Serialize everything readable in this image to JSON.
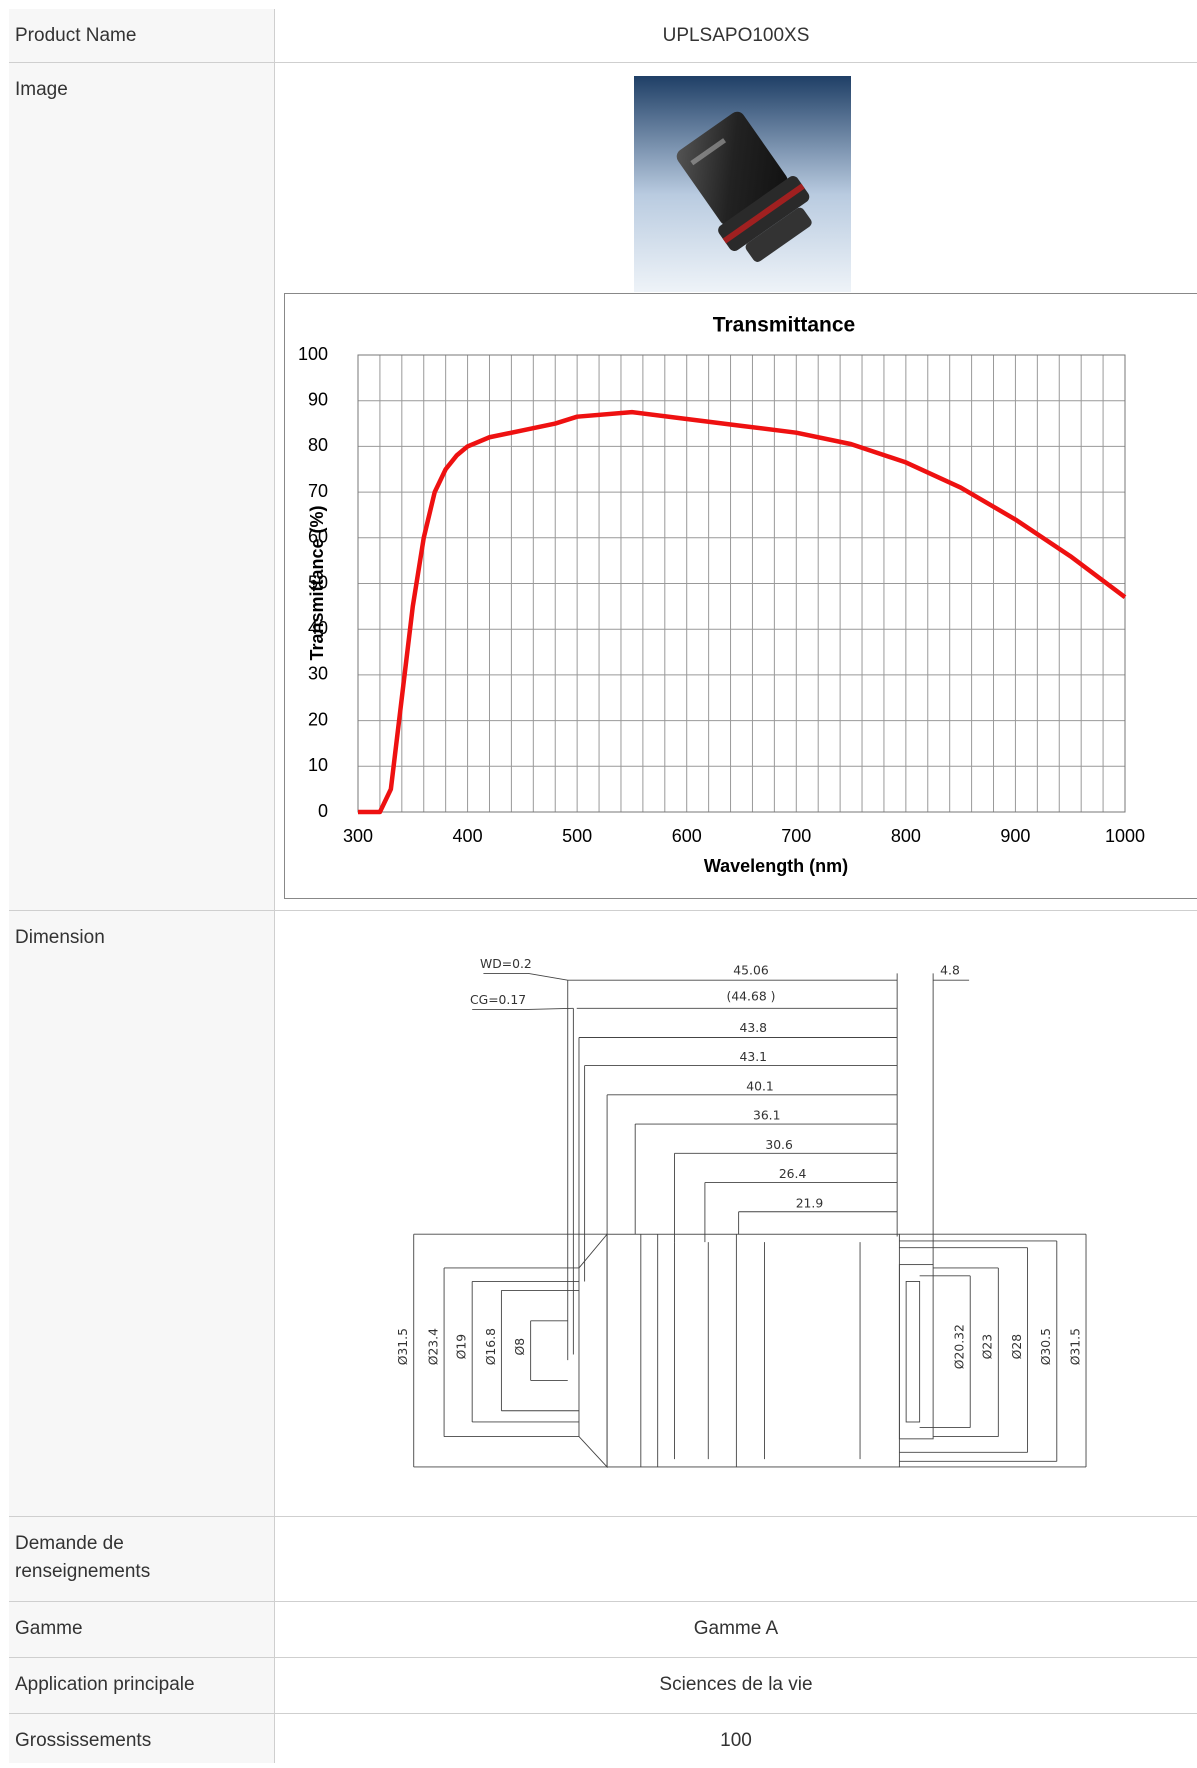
{
  "table": {
    "rows": [
      {
        "label": "Product Name",
        "value": "UPLSAPO100XS"
      },
      {
        "label": "Image"
      },
      {
        "label": "Dimension"
      },
      {
        "label": "Demande de renseignements"
      },
      {
        "label": "Gamme",
        "value": "Gamme A"
      },
      {
        "label": "Application principale",
        "value": "Sciences de la vie"
      },
      {
        "label": "Grossissements",
        "value": "100"
      }
    ]
  },
  "chart_data": {
    "type": "line",
    "title": "Transmittance",
    "x_label": "Wavelength (nm)",
    "y_label": "Transmittance (%)",
    "x": [
      300,
      310,
      320,
      330,
      340,
      350,
      360,
      370,
      380,
      390,
      400,
      420,
      450,
      480,
      500,
      550,
      600,
      650,
      700,
      750,
      800,
      850,
      900,
      950,
      1000
    ],
    "series": [
      {
        "color": "#ee1111",
        "values": [
          0,
          0,
          0,
          5,
          25,
          45,
          60,
          70,
          75,
          78,
          80,
          82,
          83.5,
          85,
          86.5,
          87.5,
          86,
          84.5,
          83,
          80.5,
          76.5,
          71,
          64,
          56,
          47
        ]
      }
    ],
    "xlim": [
      300,
      1000
    ],
    "ylim": [
      0,
      100
    ],
    "xticks": [
      300,
      400,
      500,
      600,
      700,
      800,
      900,
      1000
    ],
    "yticks": [
      0,
      10,
      20,
      30,
      40,
      50,
      60,
      70,
      80,
      90,
      100
    ],
    "xgrid": [
      300,
      320,
      340,
      360,
      380,
      400,
      420,
      440,
      460,
      480,
      500,
      520,
      540,
      560,
      580,
      600,
      620,
      640,
      660,
      680,
      700,
      720,
      740,
      760,
      780,
      800,
      820,
      840,
      860,
      880,
      900,
      920,
      940,
      960,
      980,
      1000
    ],
    "grid": true
  },
  "dimension": {
    "labels": [
      "WD=0.2",
      "CG=0.17",
      "45.06",
      "(44.68 )",
      "4.8",
      "43.8",
      "43.1",
      "40.1",
      "36.1",
      "30.6",
      "26.4",
      "21.9",
      "Ø31.5",
      "Ø23.4",
      "Ø19",
      "Ø16.8",
      "Ø8",
      "Ø20.32",
      "Ø23",
      "Ø28",
      "Ø30.5",
      "Ø31.5"
    ]
  }
}
